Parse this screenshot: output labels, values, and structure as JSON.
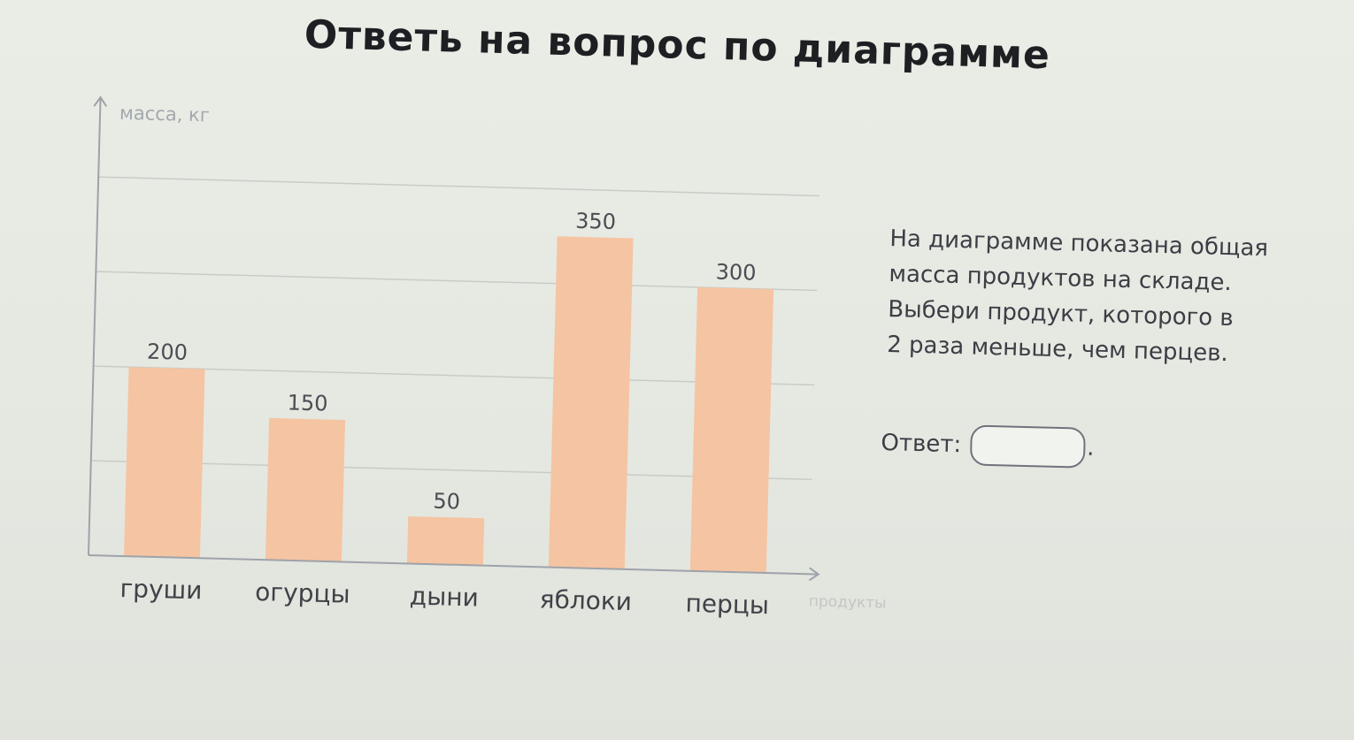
{
  "page": {
    "title": "Ответь на вопрос по диаграмме",
    "question_lines": [
      "На диаграмме показана общая",
      "масса продуктов на складе.",
      "Выбери продукт, которого в",
      "2 раза меньше, чем перцев."
    ],
    "answer_label": "Ответ:",
    "answer_value": "",
    "answer_suffix": "."
  },
  "chart_data": {
    "type": "bar",
    "categories": [
      "груши",
      "огурцы",
      "дыни",
      "яблоки",
      "перцы"
    ],
    "values": [
      200,
      150,
      50,
      350,
      300
    ],
    "value_labels": [
      "200",
      "150",
      "50",
      "350",
      "300"
    ],
    "ylabel": "масса, кг",
    "xlabel": "продукты",
    "ylim": [
      0,
      400
    ],
    "gridlines": [
      100,
      200,
      300,
      400
    ],
    "grid": true,
    "y_tick_labels_shown": false,
    "bar_color": "#f5c4a2",
    "axis_color": "#9ea3aa",
    "grid_color": "#c9ccc6"
  }
}
